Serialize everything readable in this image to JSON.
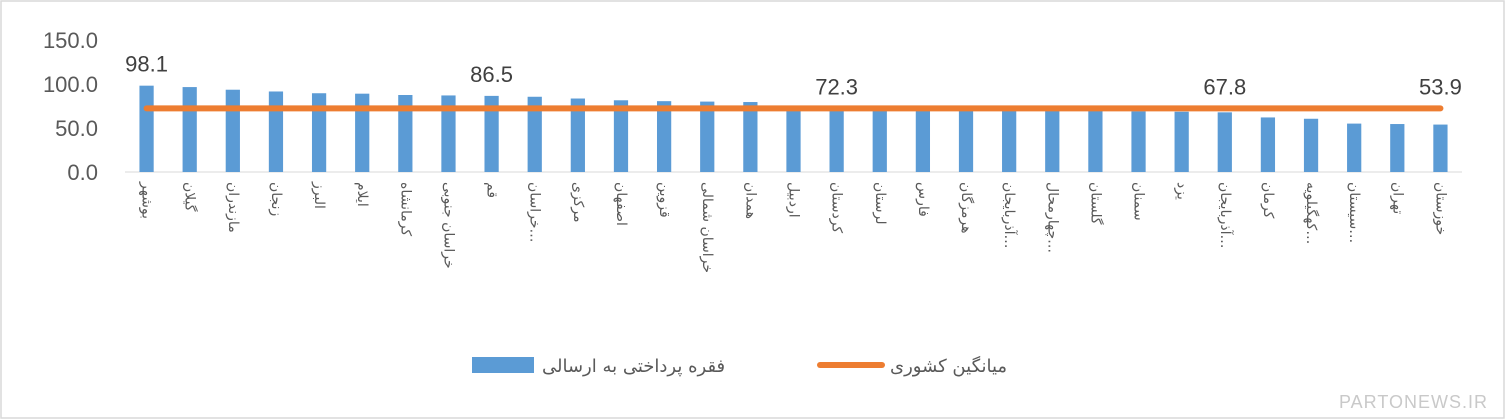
{
  "colors": {
    "bar": "#5B9BD5",
    "line": "#ED7D31",
    "border": "#d9d9d9",
    "text": "#595959"
  },
  "watermark": "PARTONEWS.IR",
  "chart_data": {
    "type": "bar",
    "ylim": [
      0,
      150
    ],
    "yticks": [
      "0.0",
      "50.0",
      "100.0",
      "150.0"
    ],
    "grid": false,
    "legend_position": "bottom",
    "categories": [
      "بوشهر",
      "گیلان",
      "مازندران",
      "زنجان",
      "البرز",
      "ایلام",
      "کرمانشاه",
      "خراسان جنوبی",
      "قم",
      "خراسان…",
      "مرکزی",
      "اصفهان",
      "قزوین",
      "خراسان شمالی",
      "همدان",
      "اردبیل",
      "کردستان",
      "لرستان",
      "فارس",
      "هرمزگان",
      "آذربایجان…",
      "چهارمحال…",
      "گلستان",
      "سمنان",
      "یزد",
      "آذربایجان…",
      "کرمان",
      "کهگیلویه…",
      "سیستان…",
      "تهران",
      "خوزستان"
    ],
    "series": [
      {
        "name": "فقره پرداختی به ارسالی",
        "type": "bar",
        "values": [
          98.1,
          96.5,
          93.5,
          91.5,
          89.5,
          89.0,
          87.5,
          87.0,
          86.5,
          85.5,
          83.5,
          81.5,
          80.5,
          80.0,
          79.5,
          72.5,
          72.3,
          72.0,
          71.5,
          71.0,
          70.5,
          70.0,
          69.5,
          69.0,
          68.5,
          67.8,
          62.0,
          60.5,
          55.0,
          54.5,
          53.9
        ]
      },
      {
        "name": "میانگین کشوری",
        "type": "line",
        "values": [
          72.3,
          72.3,
          72.3,
          72.3,
          72.3,
          72.3,
          72.3,
          72.3,
          72.3,
          72.3,
          72.3,
          72.3,
          72.3,
          72.3,
          72.3,
          72.3,
          72.3,
          72.3,
          72.3,
          72.3,
          72.3,
          72.3,
          72.3,
          72.3,
          72.3,
          72.3,
          72.3,
          72.3,
          72.3,
          72.3,
          72.3
        ]
      }
    ],
    "data_labels": [
      {
        "index": 0,
        "text": "98.1"
      },
      {
        "index": 8,
        "text": "86.5"
      },
      {
        "index": 16,
        "text": "72.3"
      },
      {
        "index": 25,
        "text": "67.8"
      },
      {
        "index": 30,
        "text": "53.9"
      }
    ]
  }
}
